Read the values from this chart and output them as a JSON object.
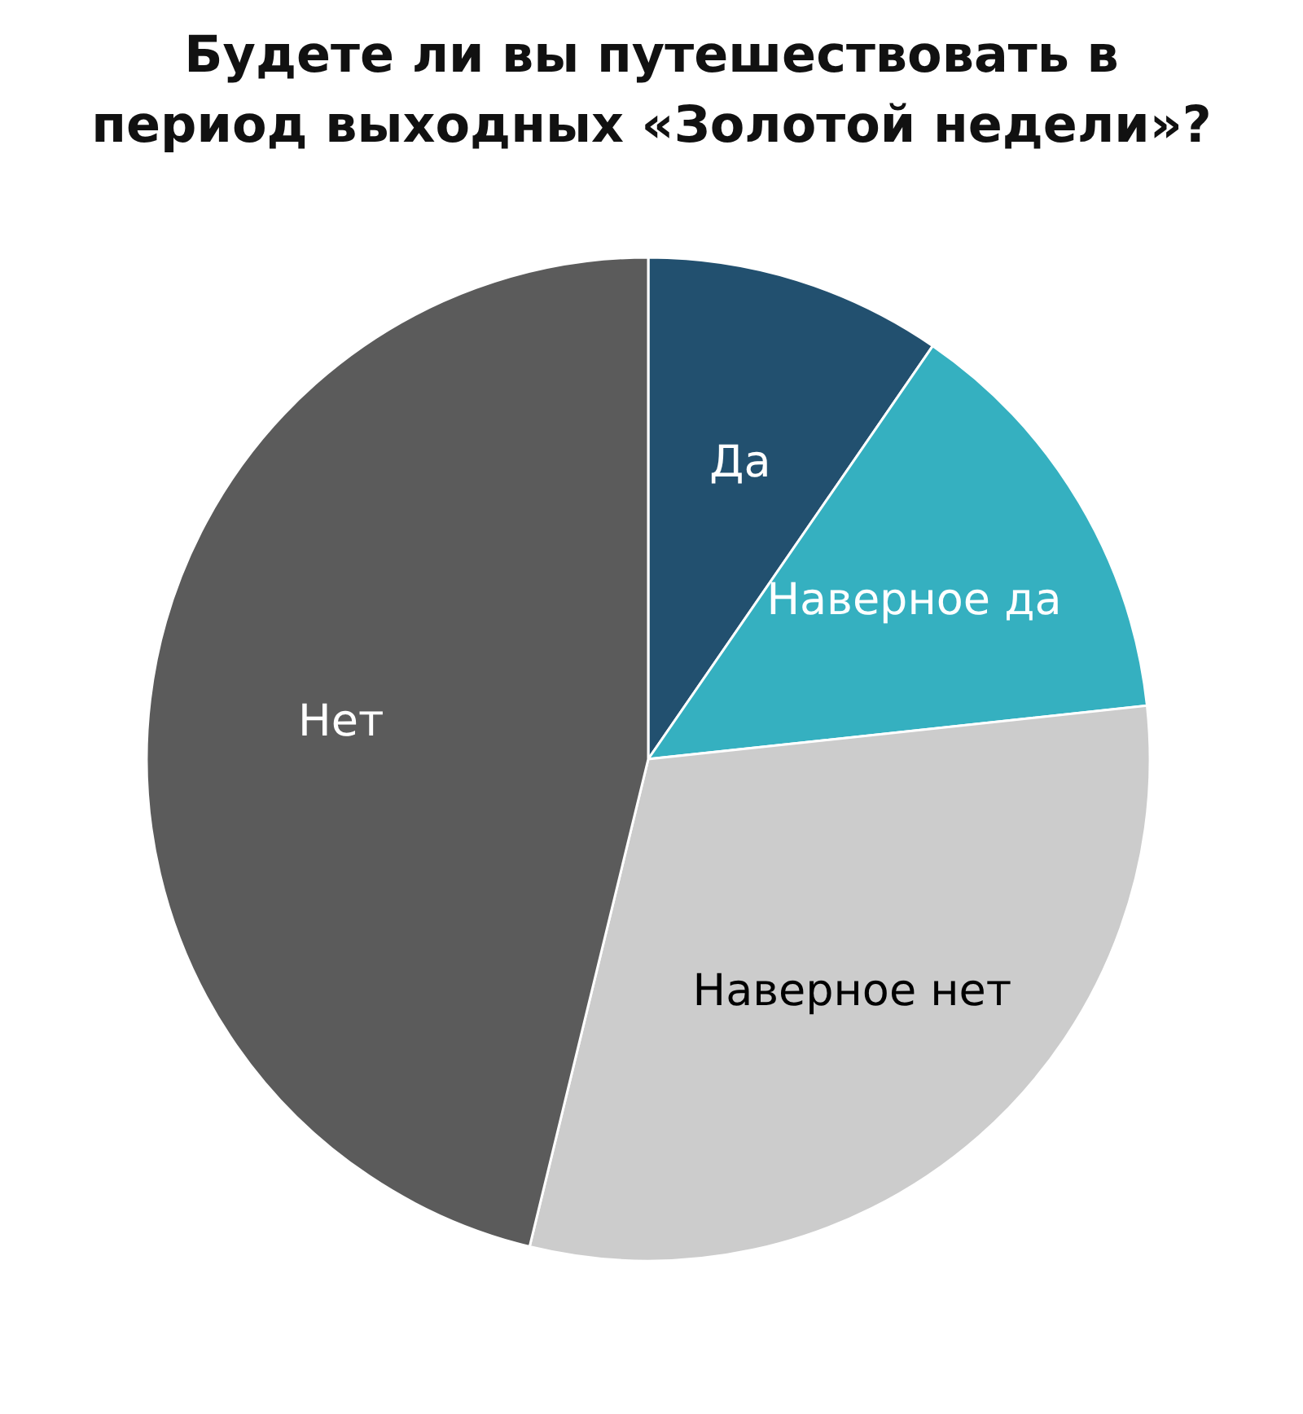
{
  "chart_data": {
    "type": "pie",
    "title": "Будете ли вы путешествовать в\nпериод выходных «Золотой недели»?",
    "categories": [
      "Да",
      "Наверное да",
      "Наверное нет",
      "Нет"
    ],
    "values": [
      9.6,
      13.7,
      30.5,
      46.2
    ],
    "colors": [
      "#22506f",
      "#35b0c0",
      "#cccccc",
      "#5b5b5b"
    ]
  }
}
